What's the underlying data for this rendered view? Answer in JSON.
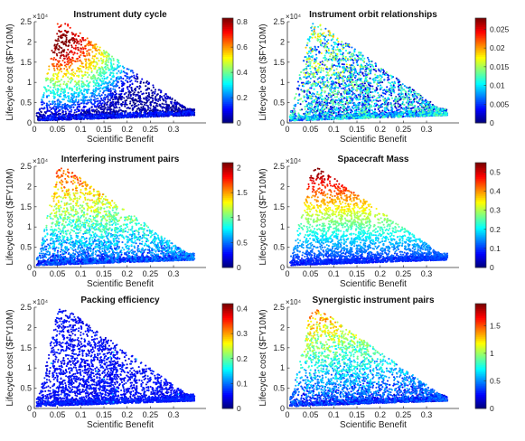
{
  "figure": {
    "xlabel": "Scientific Benefit",
    "ylabel": "Lifecycle cost ($FY10M)",
    "y_multiplier": "×10⁴"
  },
  "chart_data": [
    {
      "type": "scatter",
      "title": "Instrument duty cycle",
      "xlabel": "Scientific Benefit",
      "ylabel": "Lifecycle cost ($FY10M)",
      "xlim": [
        0,
        0.37
      ],
      "ylim": [
        0,
        2.5
      ],
      "x_ticks": [
        "0",
        "0.05",
        "0.1",
        "0.15",
        "0.2",
        "0.25",
        "0.3"
      ],
      "y_ticks": [
        "0",
        "0.5",
        "1",
        "1.5",
        "2",
        "2.5"
      ],
      "y_exponent": "×10⁴",
      "color_range": [
        0,
        0.83
      ],
      "colorbar_ticks": [
        "0",
        "0.2",
        "0.4",
        "0.6",
        "0.8"
      ],
      "colormap": "jet",
      "pattern": "high values at low benefit and high cost (cluster near x≈0.06, y≈1.8), low values along the bottom edge"
    },
    {
      "type": "scatter",
      "title": "Instrument orbit relationships",
      "xlabel": "Scientific Benefit",
      "ylabel": "Lifecycle cost ($FY10M)",
      "xlim": [
        0,
        0.37
      ],
      "ylim": [
        0,
        2.5
      ],
      "x_ticks": [
        "0",
        "0.05",
        "0.1",
        "0.15",
        "0.2",
        "0.25",
        "0.3"
      ],
      "y_ticks": [
        "0",
        "0.5",
        "1",
        "1.5",
        "2",
        "2.5"
      ],
      "y_exponent": "×10⁴",
      "color_range": [
        0,
        0.028
      ],
      "colorbar_ticks": [
        "0",
        "0.005",
        "0.01",
        "0.015",
        "0.02",
        "0.025"
      ],
      "colormap": "jet",
      "pattern": "mostly low-mid values, scattered high values at upper-left"
    },
    {
      "type": "scatter",
      "title": "Interfering instrument pairs",
      "xlabel": "Scientific Benefit",
      "ylabel": "Lifecycle cost ($FY10M)",
      "xlim": [
        0,
        0.37
      ],
      "ylim": [
        0,
        2.5
      ],
      "x_ticks": [
        "0",
        "0.05",
        "0.1",
        "0.15",
        "0.2",
        "0.25",
        "0.3"
      ],
      "y_ticks": [
        "0",
        "0.5",
        "1",
        "1.5",
        "2",
        "2.5"
      ],
      "y_exponent": "×10⁴",
      "color_range": [
        0,
        2.1
      ],
      "colorbar_ticks": [
        "0",
        "0.5",
        "1",
        "1.5",
        "2"
      ],
      "colormap": "jet",
      "pattern": "values increase with cost; yellow/orange near top, blue at bottom"
    },
    {
      "type": "scatter",
      "title": "Spacecraft Mass",
      "xlabel": "Scientific Benefit",
      "ylabel": "Lifecycle cost ($FY10M)",
      "xlim": [
        0,
        0.37
      ],
      "ylim": [
        0,
        2.5
      ],
      "x_ticks": [
        "0",
        "0.05",
        "0.1",
        "0.15",
        "0.2",
        "0.25",
        "0.3"
      ],
      "y_ticks": [
        "0",
        "0.5",
        "1",
        "1.5",
        "2",
        "2.5"
      ],
      "y_exponent": "×10⁴",
      "color_range": [
        0,
        0.55
      ],
      "colorbar_ticks": [
        "0",
        "0.1",
        "0.2",
        "0.3",
        "0.4",
        "0.5"
      ],
      "colormap": "jet",
      "pattern": "strong vertical gradient: red at top (cost≈2.2), cyan in middle, blue at bottom"
    },
    {
      "type": "scatter",
      "title": "Packing efficiency",
      "xlabel": "Scientific Benefit",
      "ylabel": "Lifecycle cost ($FY10M)",
      "xlim": [
        0,
        0.37
      ],
      "ylim": [
        0,
        2.5
      ],
      "x_ticks": [
        "0",
        "0.05",
        "0.1",
        "0.15",
        "0.2",
        "0.25",
        "0.3"
      ],
      "y_ticks": [
        "0",
        "0.5",
        "1",
        "1.5",
        "2",
        "2.5"
      ],
      "y_exponent": "×10⁴",
      "color_range": [
        0,
        0.42
      ],
      "colorbar_ticks": [
        "0",
        "0.1",
        "0.2",
        "0.3",
        "0.4"
      ],
      "colormap": "jet",
      "pattern": "almost uniformly low (blue) values"
    },
    {
      "type": "scatter",
      "title": "Synergistic instrument pairs",
      "xlabel": "Scientific Benefit",
      "ylabel": "Lifecycle cost ($FY10M)",
      "xlim": [
        0,
        0.37
      ],
      "ylim": [
        0,
        2.5
      ],
      "x_ticks": [
        "0",
        "0.05",
        "0.1",
        "0.15",
        "0.2",
        "0.25",
        "0.3"
      ],
      "y_ticks": [
        "0",
        "0.5",
        "1",
        "1.5",
        "2",
        "2.5"
      ],
      "y_exponent": "×10⁴",
      "color_range": [
        0,
        1.9
      ],
      "colorbar_ticks": [
        "0",
        "0.5",
        "1",
        "1.5"
      ],
      "colormap": "jet",
      "pattern": "orange/yellow near upper-left, blue at bottom"
    }
  ]
}
